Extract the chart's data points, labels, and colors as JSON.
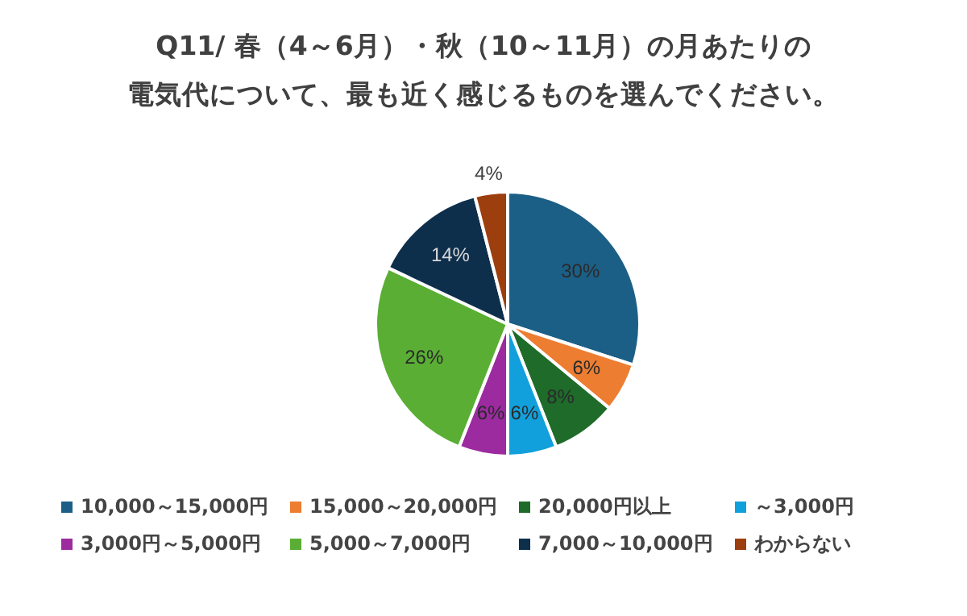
{
  "chart_data": {
    "type": "pie",
    "title": "Q11/ 春（4～6月）・秋（10～11月）の月あたりの",
    "subtitle": "電気代について、最も近く感じるものを選んでください。",
    "categories": [
      "10,000～15,000円",
      "15,000～20,000円",
      "20,000円以上",
      "～3,000円",
      "3,000円～5,000円",
      "5,000～7,000円",
      "7,000～10,000円",
      "わからない"
    ],
    "values": [
      30,
      6,
      8,
      6,
      6,
      26,
      14,
      4
    ],
    "value_labels": [
      "30%",
      "6%",
      "8%",
      "6%",
      "6%",
      "26%",
      "14%",
      "4%"
    ],
    "colors": [
      "#1c5f86",
      "#ed7d31",
      "#1e6b2a",
      "#12a0dc",
      "#9c2ba0",
      "#5aae34",
      "#0e2f4c",
      "#9c3e0d"
    ],
    "legend": "bottom"
  }
}
